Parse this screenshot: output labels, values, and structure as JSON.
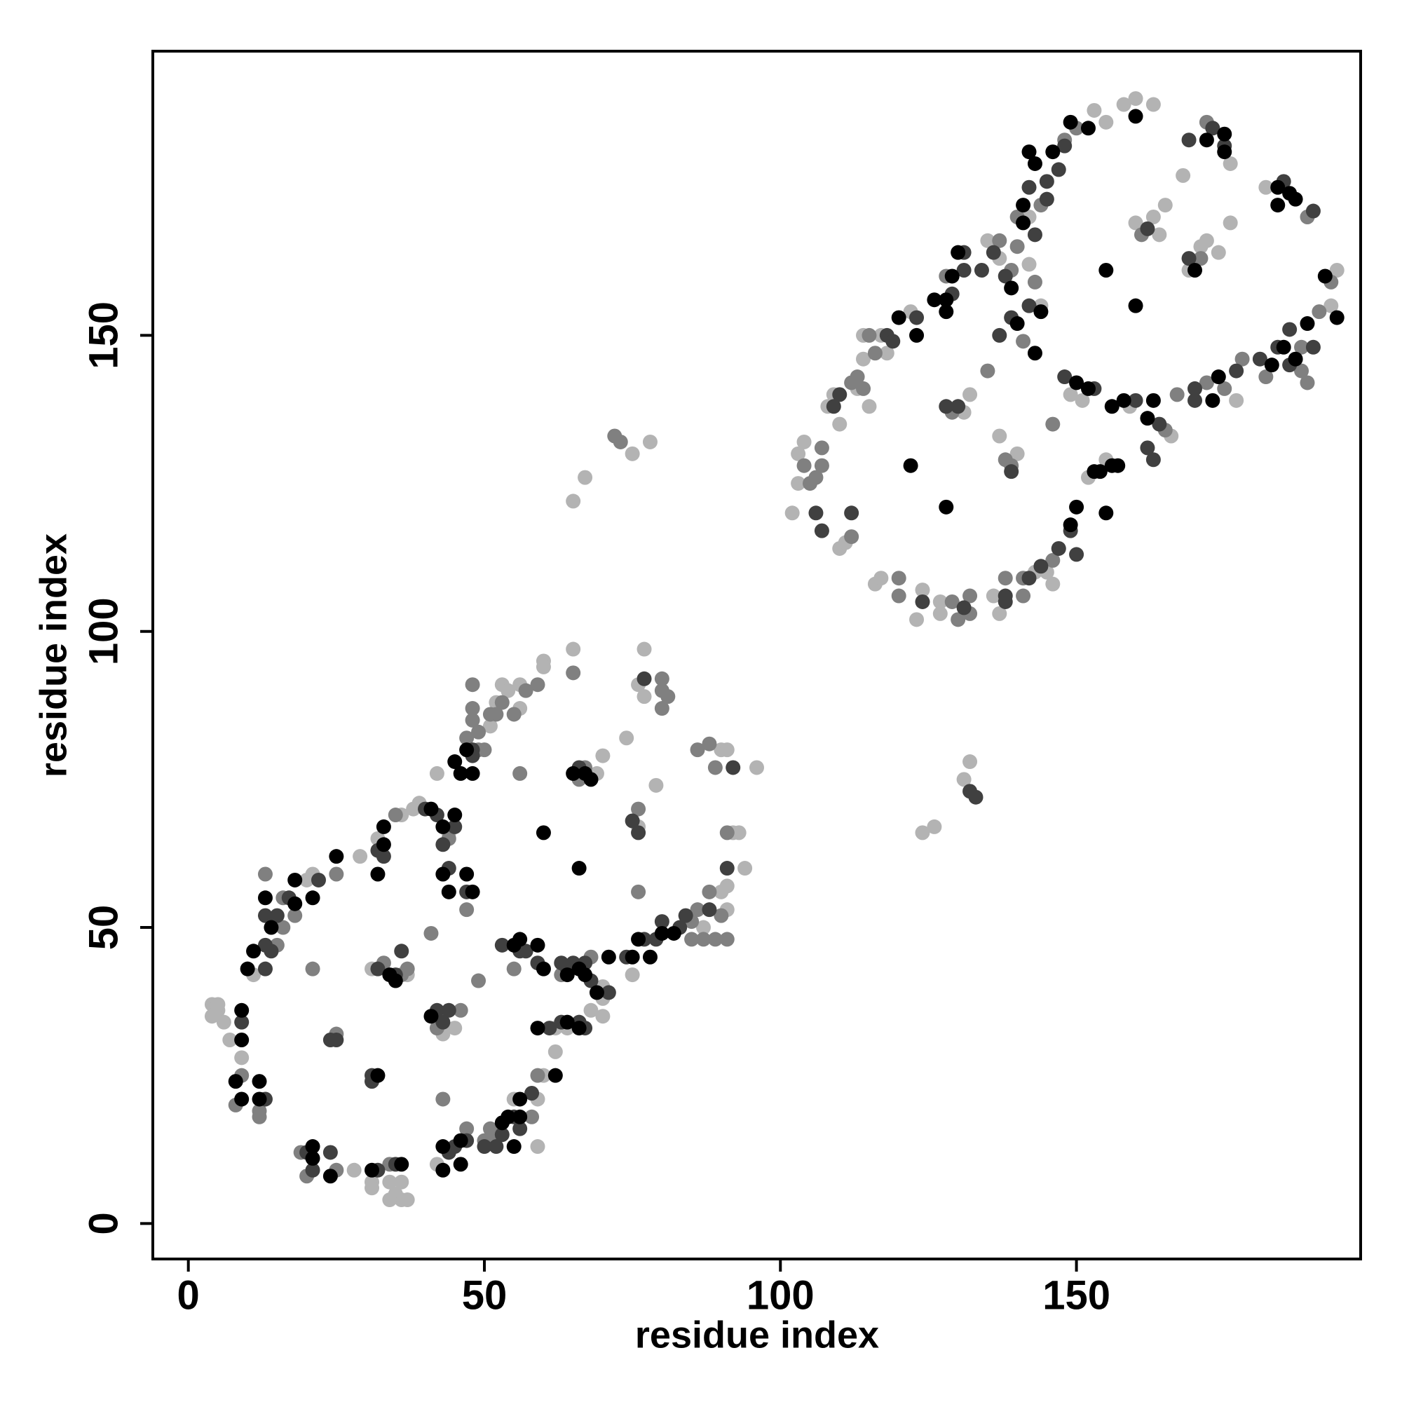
{
  "chart_data": {
    "type": "scatter",
    "xlabel": "residue index",
    "ylabel": "residue index",
    "xlim": [
      -6,
      198
    ],
    "ylim": [
      -6,
      198
    ],
    "xticks": [
      0,
      50,
      100,
      150
    ],
    "yticks": [
      0,
      50,
      100,
      150
    ],
    "series": [
      {
        "color": "#b3b3b3",
        "x": [
          4,
          5,
          4,
          6,
          5,
          7,
          9,
          11,
          20,
          21,
          29,
          28,
          31,
          31,
          34,
          36,
          35,
          36,
          37,
          34,
          31,
          37,
          32,
          36,
          38,
          39,
          44,
          42,
          43,
          45,
          42,
          55,
          59,
          59,
          60,
          51,
          52,
          53,
          54,
          56,
          56,
          60,
          60,
          62,
          64,
          62,
          70,
          70,
          70,
          68,
          69,
          65,
          70,
          74,
          77,
          76,
          77,
          76,
          79,
          75,
          87,
          90,
          91,
          91,
          90,
          91,
          96,
          92,
          93,
          94,
          65,
          67,
          75,
          78,
          124,
          126,
          131,
          132,
          102,
          103,
          103,
          104,
          108,
          109,
          110,
          110,
          111,
          113,
          114,
          114,
          117,
          118,
          115,
          122,
          116,
          117,
          124,
          123,
          127,
          127,
          136,
          137,
          135,
          137,
          142,
          131,
          132,
          140,
          137,
          149,
          151,
          159,
          166,
          155,
          152,
          145,
          143,
          146,
          147,
          144,
          142,
          153,
          155,
          158,
          160,
          163,
          164,
          160,
          163,
          165,
          171,
          174,
          169,
          176,
          168,
          172,
          176,
          182,
          194,
          193,
          177
        ],
        "y": [
          37,
          36,
          35,
          34,
          37,
          31,
          28,
          42,
          58,
          59,
          62,
          9,
          7,
          6,
          7,
          7,
          5,
          4,
          4,
          4,
          43,
          42,
          65,
          69,
          70,
          71,
          66,
          76,
          32,
          33,
          10,
          21,
          21,
          13,
          25,
          84,
          88,
          91,
          90,
          91,
          87,
          95,
          94,
          33,
          33,
          29,
          40,
          38,
          35,
          36,
          76,
          97,
          79,
          82,
          97,
          91,
          89,
          67,
          74,
          42,
          50,
          56,
          53,
          57,
          80,
          80,
          77,
          66,
          66,
          60,
          122,
          126,
          130,
          132,
          66,
          67,
          75,
          78,
          120,
          125,
          130,
          132,
          138,
          140,
          135,
          114,
          115,
          141,
          146,
          150,
          150,
          147,
          138,
          154,
          108,
          109,
          107,
          102,
          105,
          103,
          106,
          103,
          166,
          163,
          170,
          137,
          140,
          130,
          133,
          140,
          139,
          138,
          133,
          129,
          126,
          110,
          110,
          108,
          114,
          155,
          162,
          188,
          186,
          189,
          190,
          189,
          167,
          169,
          170,
          172,
          165,
          164,
          161,
          179,
          177,
          166,
          169,
          175,
          161,
          155,
          139
        ]
      },
      {
        "color": "#808080",
        "x": [
          8,
          9,
          12,
          12,
          13,
          15,
          16,
          18,
          16,
          21,
          25,
          19,
          20,
          25,
          34,
          25,
          33,
          36,
          37,
          35,
          44,
          47,
          47,
          41,
          42,
          46,
          43,
          47,
          50,
          51,
          52,
          58,
          59,
          49,
          48,
          48,
          48,
          49,
          49,
          50,
          51,
          52,
          53,
          55,
          56,
          57,
          59,
          55,
          63,
          68,
          66,
          67,
          65,
          80,
          80,
          80,
          81,
          76,
          76,
          85,
          85,
          86,
          87,
          88,
          89,
          90,
          91,
          86,
          88,
          89,
          91,
          72,
          73,
          104,
          105,
          106,
          107,
          107,
          112,
          113,
          115,
          116,
          114,
          112,
          120,
          120,
          129,
          130,
          132,
          132,
          138,
          141,
          141,
          128,
          137,
          139,
          140,
          140,
          144,
          129,
          138,
          139,
          135,
          141,
          146,
          165,
          146,
          143,
          148,
          150,
          161,
          171,
          172,
          189,
          193,
          191,
          188,
          182,
          188,
          189,
          172,
          175,
          178,
          167
        ],
        "y": [
          20,
          25,
          19,
          18,
          59,
          47,
          55,
          52,
          50,
          43,
          59,
          12,
          8,
          9,
          10,
          32,
          44,
          42,
          43,
          69,
          65,
          82,
          53,
          49,
          33,
          36,
          21,
          16,
          14,
          16,
          15,
          18,
          25,
          41,
          91,
          87,
          85,
          83,
          80,
          80,
          86,
          86,
          88,
          86,
          76,
          90,
          91,
          43,
          42,
          45,
          75,
          77,
          93,
          92,
          90,
          87,
          89,
          70,
          56,
          51,
          48,
          53,
          48,
          56,
          48,
          52,
          48,
          80,
          81,
          77,
          66,
          133,
          132,
          128,
          125,
          126,
          128,
          131,
          116,
          143,
          150,
          147,
          141,
          142,
          109,
          106,
          105,
          102,
          106,
          103,
          109,
          106,
          109,
          160,
          166,
          161,
          165,
          170,
          172,
          137,
          129,
          128,
          144,
          149,
          135,
          134,
          112,
          159,
          183,
          185,
          167,
          163,
          186,
          170,
          159,
          154,
          148,
          143,
          144,
          142,
          142,
          141,
          146,
          140
        ]
      },
      {
        "color": "#404040",
        "x": [
          9,
          13,
          13,
          13,
          13,
          14,
          15,
          17,
          22,
          20,
          21,
          24,
          32,
          35,
          24,
          25,
          31,
          31,
          32,
          35,
          36,
          32,
          33,
          40,
          42,
          43,
          45,
          48,
          44,
          47,
          42,
          43,
          44,
          44,
          45,
          47,
          50,
          52,
          53,
          55,
          56,
          58,
          48,
          53,
          56,
          57,
          59,
          61,
          63,
          66,
          63,
          64,
          65,
          67,
          68,
          71,
          67,
          66,
          75,
          76,
          77,
          74,
          77,
          79,
          80,
          83,
          84,
          88,
          91,
          92,
          132,
          133,
          106,
          107,
          109,
          110,
          112,
          118,
          119,
          123,
          124,
          131,
          138,
          138,
          142,
          129,
          131,
          131,
          134,
          136,
          138,
          145,
          128,
          130,
          139,
          137,
          139,
          142,
          148,
          153,
          160,
          164,
          162,
          163,
          150,
          149,
          147,
          144,
          143,
          142,
          145,
          147,
          148,
          162,
          169,
          169,
          173,
          175,
          185,
          190,
          190,
          186,
          184,
          181,
          186,
          170,
          177,
          170
        ],
        "y": [
          34,
          21,
          52,
          47,
          43,
          46,
          52,
          55,
          58,
          12,
          9,
          12,
          9,
          10,
          31,
          31,
          25,
          24,
          43,
          42,
          46,
          63,
          62,
          70,
          69,
          64,
          67,
          79,
          60,
          56,
          36,
          34,
          36,
          12,
          13,
          14,
          13,
          13,
          15,
          18,
          16,
          22,
          80,
          47,
          46,
          46,
          44,
          33,
          34,
          34,
          44,
          43,
          44,
          44,
          41,
          39,
          33,
          77,
          68,
          66,
          92,
          45,
          48,
          48,
          51,
          50,
          52,
          53,
          60,
          77,
          73,
          72,
          120,
          117,
          138,
          140,
          120,
          150,
          149,
          153,
          105,
          104,
          105,
          106,
          109,
          157,
          161,
          164,
          161,
          164,
          160,
          173,
          138,
          138,
          127,
          150,
          153,
          155,
          143,
          141,
          139,
          135,
          131,
          129,
          113,
          117,
          114,
          111,
          167,
          175,
          176,
          178,
          182,
          168,
          163,
          183,
          185,
          182,
          176,
          171,
          148,
          151,
          148,
          146,
          145,
          141,
          144,
          139
        ]
      },
      {
        "color": "#000000",
        "x": [
          9,
          9,
          8,
          9,
          12,
          12,
          10,
          11,
          13,
          14,
          18,
          18,
          21,
          25,
          21,
          21,
          24,
          31,
          36,
          32,
          34,
          35,
          32,
          33,
          33,
          41,
          43,
          45,
          45,
          46,
          47,
          48,
          43,
          44,
          47,
          48,
          41,
          43,
          43,
          46,
          46,
          53,
          54,
          55,
          56,
          56,
          55,
          56,
          59,
          60,
          59,
          64,
          66,
          62,
          60,
          66,
          64,
          66,
          67,
          69,
          71,
          65,
          67,
          68,
          75,
          76,
          78,
          80,
          82,
          120,
          123,
          126,
          122,
          128,
          128,
          129,
          128,
          130,
          139,
          141,
          141,
          140,
          143,
          144,
          150,
          152,
          156,
          158,
          162,
          163,
          157,
          156,
          154,
          150,
          149,
          153,
          155,
          143,
          142,
          146,
          149,
          152,
          160,
          155,
          160,
          170,
          172,
          175,
          175,
          184,
          186,
          187,
          184,
          192,
          194,
          189,
          185,
          187,
          183,
          174,
          173
        ],
        "y": [
          36,
          31,
          24,
          21,
          24,
          21,
          43,
          46,
          55,
          50,
          58,
          54,
          55,
          62,
          13,
          11,
          8,
          9,
          10,
          25,
          42,
          41,
          59,
          64,
          67,
          70,
          67,
          69,
          78,
          76,
          80,
          76,
          59,
          56,
          59,
          56,
          35,
          13,
          9,
          14,
          10,
          17,
          18,
          13,
          21,
          18,
          47,
          48,
          47,
          43,
          33,
          34,
          33,
          25,
          66,
          60,
          42,
          43,
          42,
          39,
          45,
          76,
          76,
          75,
          45,
          48,
          45,
          49,
          49,
          153,
          150,
          156,
          128,
          121,
          156,
          160,
          154,
          164,
          158,
          172,
          169,
          152,
          147,
          154,
          142,
          141,
          138,
          139,
          136,
          139,
          128,
          128,
          127,
          121,
          118,
          127,
          120,
          179,
          181,
          181,
          186,
          185,
          187,
          161,
          155,
          161,
          183,
          184,
          181,
          175,
          174,
          173,
          172,
          160,
          153,
          152,
          148,
          146,
          145,
          143,
          139
        ]
      }
    ]
  }
}
